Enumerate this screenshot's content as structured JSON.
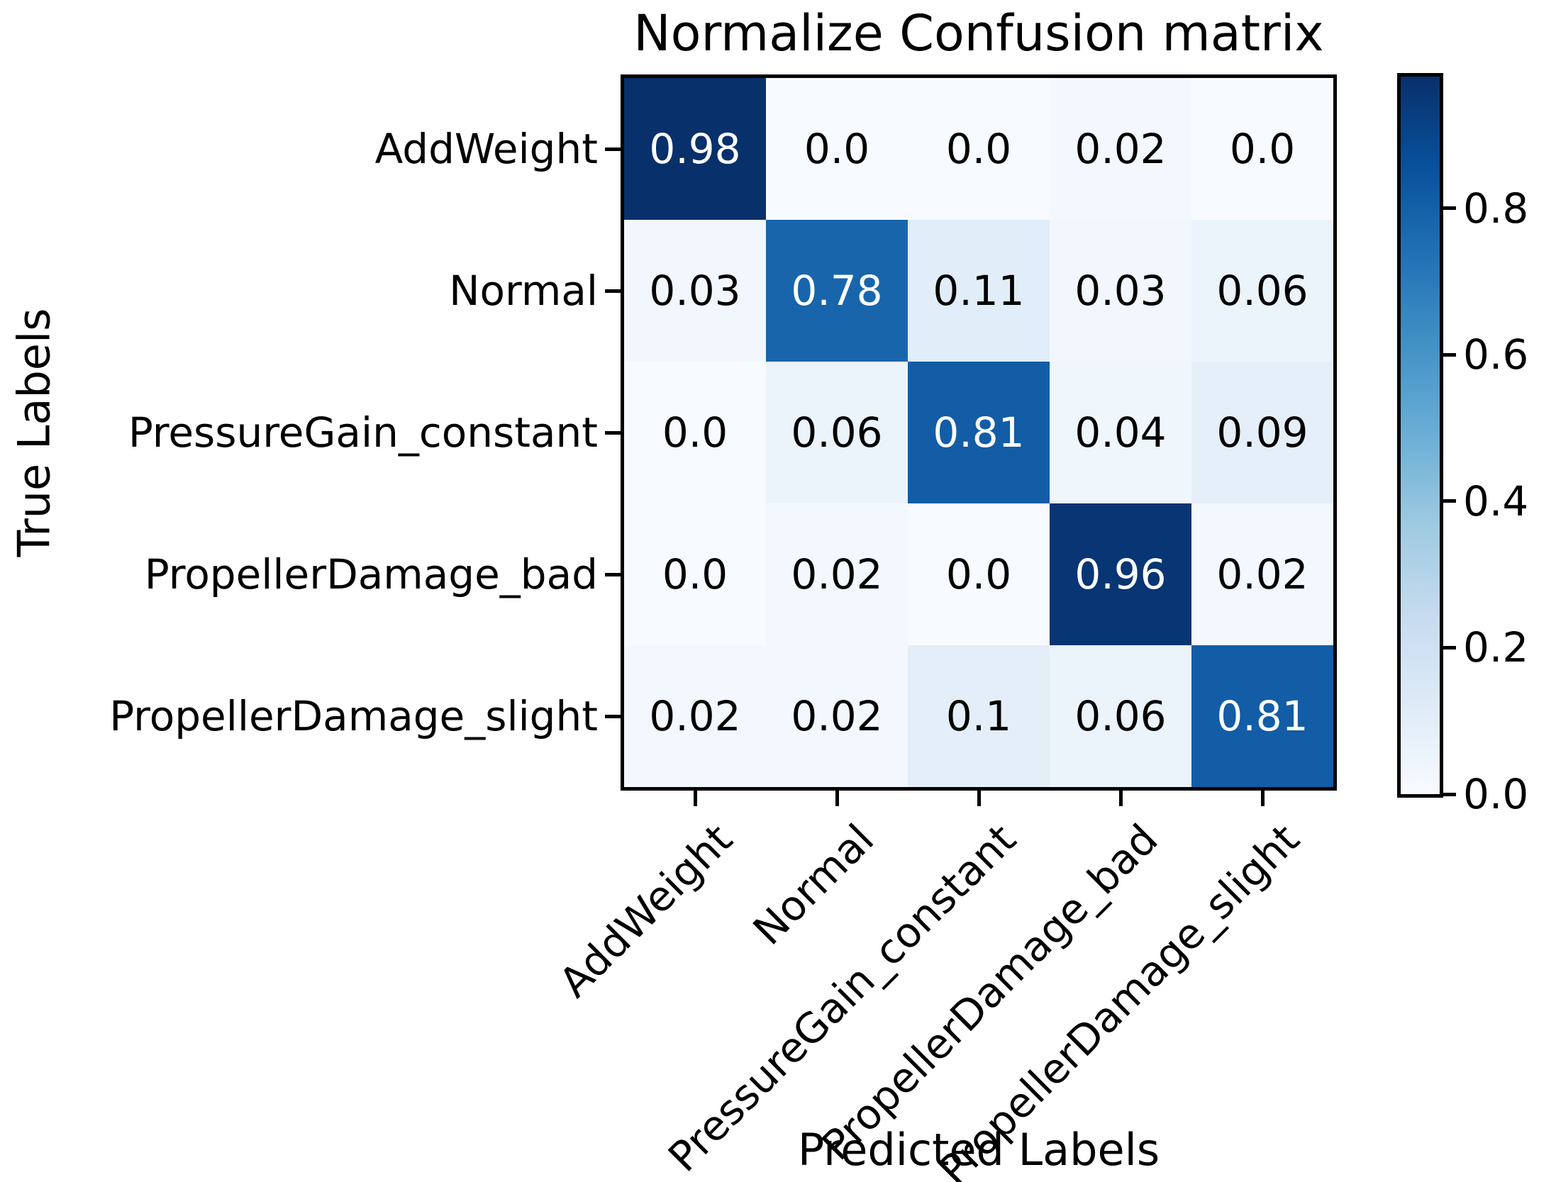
{
  "chart_data": {
    "type": "heatmap",
    "title": "Normalize Confusion matrix",
    "xlabel": "Predicted Labels",
    "ylabel": "True Labels",
    "x_categories": [
      "AddWeight",
      "Normal",
      "PressureGain_constant",
      "PropellerDamage_bad",
      "PropellerDamage_slight"
    ],
    "y_categories": [
      "AddWeight",
      "Normal",
      "PressureGain_constant",
      "PropellerDamage_bad",
      "PropellerDamage_slight"
    ],
    "matrix": [
      [
        0.98,
        0.0,
        0.0,
        0.02,
        0.0
      ],
      [
        0.03,
        0.78,
        0.11,
        0.03,
        0.06
      ],
      [
        0.0,
        0.06,
        0.81,
        0.04,
        0.09
      ],
      [
        0.0,
        0.02,
        0.0,
        0.96,
        0.02
      ],
      [
        0.02,
        0.02,
        0.1,
        0.06,
        0.81
      ]
    ],
    "cell_labels": [
      [
        "0.98",
        "0.0",
        "0.0",
        "0.02",
        "0.0"
      ],
      [
        "0.03",
        "0.78",
        "0.11",
        "0.03",
        "0.06"
      ],
      [
        "0.0",
        "0.06",
        "0.81",
        "0.04",
        "0.09"
      ],
      [
        "0.0",
        "0.02",
        "0.0",
        "0.96",
        "0.02"
      ],
      [
        "0.02",
        "0.02",
        "0.1",
        "0.06",
        "0.81"
      ]
    ],
    "vmin": 0.0,
    "vmax": 0.98,
    "text_color_threshold": 0.49,
    "cell_text_light": "#ffffff",
    "cell_text_dark": "#000000",
    "colormap": {
      "name": "Blues",
      "stops": [
        "#f7fbff",
        "#deebf7",
        "#c6dbef",
        "#9ecae1",
        "#6baed6",
        "#4292c6",
        "#2171b5",
        "#08519c",
        "#08306b"
      ]
    },
    "colorbar": {
      "tick_values": [
        0.0,
        0.2,
        0.4,
        0.6,
        0.8
      ],
      "tick_labels": [
        "0.0",
        "0.2",
        "0.4",
        "0.6",
        "0.8"
      ]
    },
    "grid": false,
    "legend_position": "none"
  }
}
